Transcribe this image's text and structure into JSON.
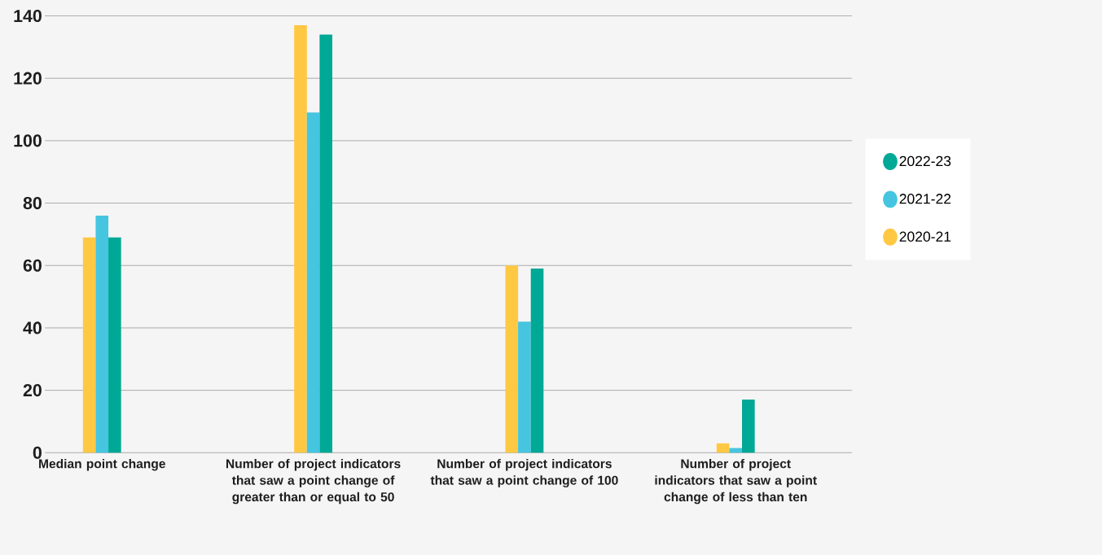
{
  "chart_data": {
    "type": "bar",
    "categories": [
      "Median point change",
      "Number of project indicators that saw a point change of greater than or equal to 50",
      "Number of project indicators that saw a point change of 100",
      "Number of project indicators that saw a point change of less than ten"
    ],
    "series": [
      {
        "name": "2020-21",
        "color": "#ffc843",
        "values": [
          69,
          137,
          60,
          3
        ]
      },
      {
        "name": "2021-22",
        "color": "#45c5e0",
        "values": [
          76,
          109,
          42,
          1.5
        ]
      },
      {
        "name": "2022-23",
        "color": "#00a896",
        "values": [
          69,
          134,
          59,
          17
        ]
      }
    ],
    "ylim": [
      0,
      140
    ],
    "yticks": [
      0,
      20,
      40,
      60,
      80,
      100,
      120,
      140
    ],
    "grid": "y",
    "legend": "right"
  }
}
